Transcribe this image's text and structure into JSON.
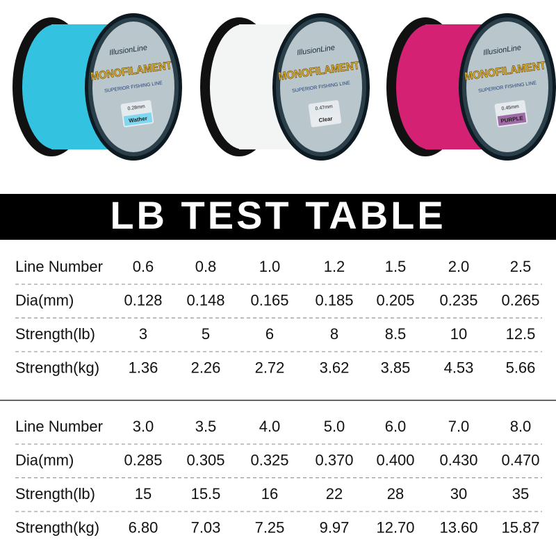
{
  "spools": [
    {
      "brand": "IllusionLine",
      "product": "MONOFILAMENT",
      "tagline": "SUPERIOR FISHING LINE",
      "diameter": "0.28mm",
      "color_name": "Wather"
    },
    {
      "brand": "IllusionLine",
      "product": "MONOFILAMENT",
      "tagline": "SUPERIOR FISHING LINE",
      "diameter": "0.47mm",
      "color_name": "Clear"
    },
    {
      "brand": "IllusionLine",
      "product": "MONOFILAMENT",
      "tagline": "SUPERIOR FISHING LINE",
      "diameter": "0.45mm",
      "color_name": "PURPLE"
    }
  ],
  "title": "LB TEST TABLE",
  "tables": [
    {
      "rows": [
        {
          "label": "Line Number",
          "cells": [
            "0.6",
            "0.8",
            "1.0",
            "1.2",
            "1.5",
            "2.0",
            "2.5"
          ]
        },
        {
          "label": "Dia(mm)",
          "cells": [
            "0.128",
            "0.148",
            "0.165",
            "0.185",
            "0.205",
            "0.235",
            "0.265"
          ]
        },
        {
          "label": "Strength(lb)",
          "cells": [
            "3",
            "5",
            "6",
            "8",
            "8.5",
            "10",
            "12.5"
          ]
        },
        {
          "label": "Strength(kg)",
          "cells": [
            "1.36",
            "2.26",
            "2.72",
            "3.62",
            "3.85",
            "4.53",
            "5.66"
          ]
        }
      ]
    },
    {
      "rows": [
        {
          "label": "Line Number",
          "cells": [
            "3.0",
            "3.5",
            "4.0",
            "5.0",
            "6.0",
            "7.0",
            "8.0"
          ]
        },
        {
          "label": "Dia(mm)",
          "cells": [
            "0.285",
            "0.305",
            "0.325",
            "0.370",
            "0.400",
            "0.430",
            "0.470"
          ]
        },
        {
          "label": "Strength(lb)",
          "cells": [
            "15",
            "15.5",
            "16",
            "22",
            "28",
            "30",
            "35"
          ]
        },
        {
          "label": "Strength(kg)",
          "cells": [
            "6.80",
            "7.03",
            "7.25",
            "9.97",
            "12.70",
            "13.60",
            "15.87"
          ]
        }
      ]
    }
  ]
}
